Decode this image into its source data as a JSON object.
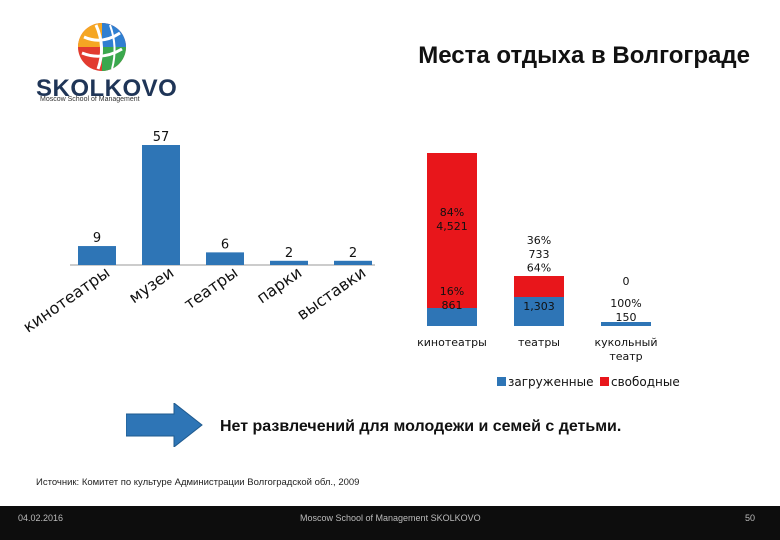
{
  "title": "Места отдыха в Волгограде",
  "logo": {
    "wordmark": "SKOLKOVO",
    "subtitle": "Moscow School of Management"
  },
  "colors": {
    "bar_blue": "#2e75b6",
    "red": "#e8161b",
    "arrow": "#2e75b6",
    "footer_bg": "#0d0d0d"
  },
  "chart_data": [
    {
      "type": "bar",
      "categories": [
        "кинотеатры",
        "музеи",
        "театры",
        "парки",
        "выставки"
      ],
      "values": [
        9,
        57,
        6,
        2,
        2
      ],
      "data_labels": [
        "9",
        "57",
        "6",
        "2",
        "2"
      ],
      "ylim": [
        0,
        57
      ],
      "grid": false,
      "legend": "none"
    },
    {
      "type": "bar",
      "stacked": true,
      "categories": [
        "кинотеатры",
        "театры",
        "кукольный театр"
      ],
      "series": [
        {
          "name": "загруженные",
          "values": [
            861,
            1303,
            150
          ],
          "labels": [
            "16%\n861",
            "1,303",
            "100%\n150"
          ],
          "color": "#2e75b6"
        },
        {
          "name": "свободные",
          "values": [
            4521,
            733,
            0
          ],
          "labels": [
            "84%\n4,521",
            "36%\n733\n64%",
            "0"
          ],
          "color": "#e8161b"
        }
      ],
      "legend": "bottom",
      "grid": false
    }
  ],
  "message": "Нет развлечений для молодежи и семей с детьми.",
  "source": "Источник: Комитет по культуре Администрации Волгоградской обл., 2009",
  "footer": {
    "date": "04.02.2016",
    "center": "Moscow School of Management SKOLKOVO",
    "page": "50"
  }
}
